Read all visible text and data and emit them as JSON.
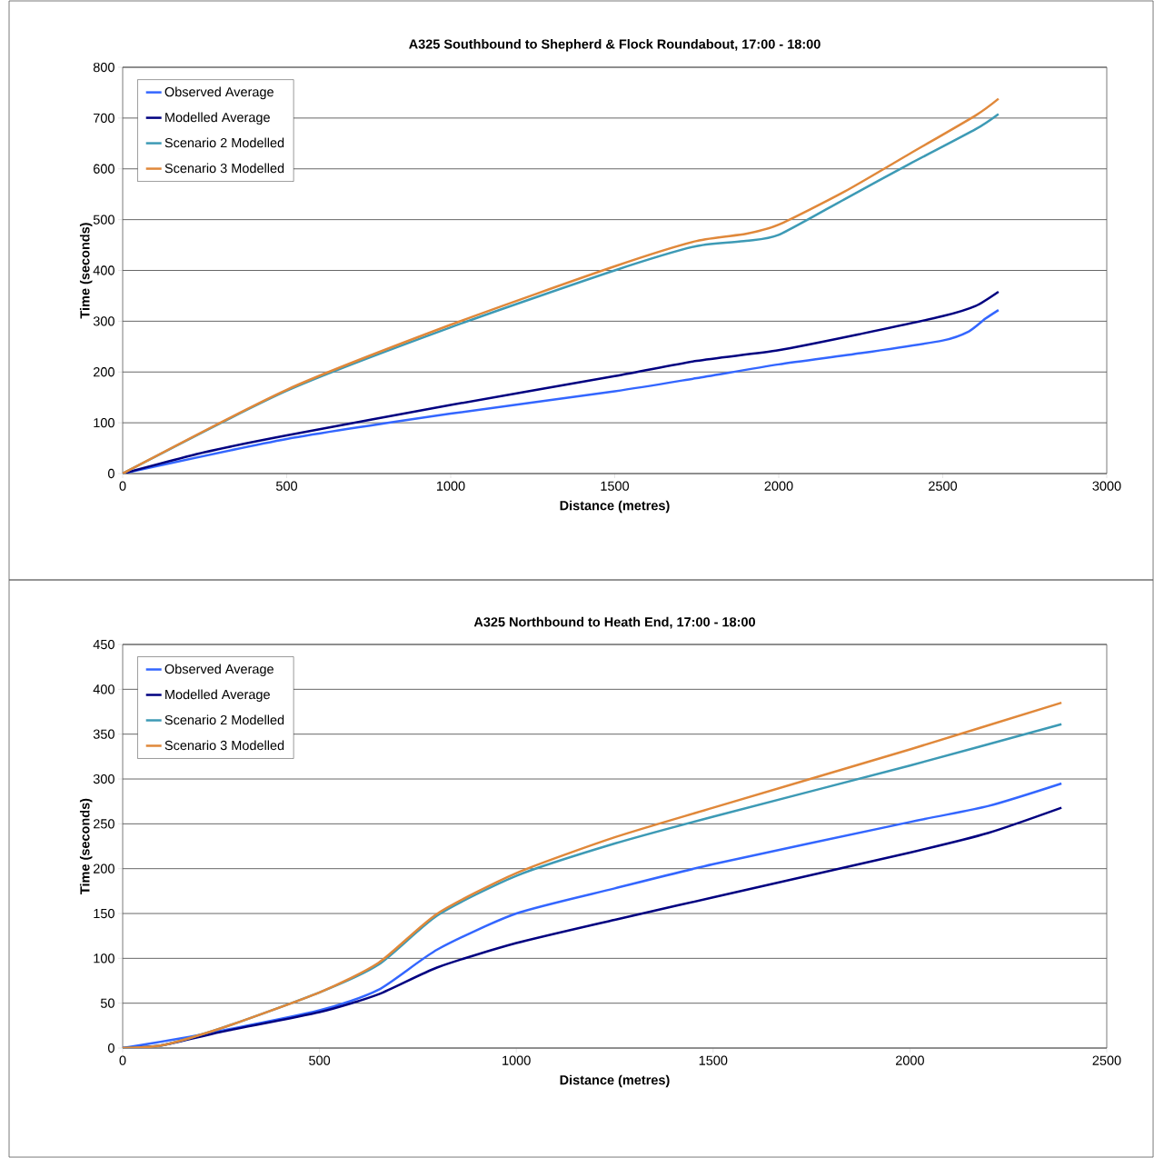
{
  "chart_data": [
    {
      "type": "line",
      "title": "A325 Southbound to Shepherd & Flock Roundabout, 17:00 - 18:00",
      "xlabel": "Distance (metres)",
      "ylabel": "Time (seconds)",
      "xlim": [
        0,
        3000
      ],
      "xticks": [
        0,
        500,
        1000,
        1500,
        2000,
        2500,
        3000
      ],
      "ylim": [
        0,
        800
      ],
      "yticks": [
        0,
        100,
        200,
        300,
        400,
        500,
        600,
        700,
        800
      ],
      "grid": "y",
      "legend": "top left",
      "marker": "none",
      "line_style": "solid",
      "series": [
        {
          "name": "Observed Average",
          "color": "#3366ff",
          "x": [
            0,
            500,
            1000,
            1500,
            1750,
            2000,
            2250,
            2500,
            2580,
            2630,
            2670
          ],
          "values": [
            0,
            68,
            118,
            162,
            188,
            215,
            237,
            262,
            280,
            305,
            322
          ]
        },
        {
          "name": "Modelled Average",
          "color": "#000080",
          "x": [
            0,
            250,
            500,
            1000,
            1500,
            1750,
            2000,
            2250,
            2500,
            2600,
            2670
          ],
          "values": [
            0,
            42,
            75,
            135,
            192,
            222,
            243,
            275,
            310,
            330,
            358
          ]
        },
        {
          "name": "Scenario 2 Modelled",
          "color": "#3d9ab5",
          "x": [
            0,
            500,
            1000,
            1500,
            1750,
            1900,
            2000,
            2200,
            2400,
            2600,
            2670
          ],
          "values": [
            0,
            163,
            288,
            400,
            448,
            458,
            470,
            540,
            610,
            678,
            708
          ]
        },
        {
          "name": "Scenario 3 Modelled",
          "color": "#e0883a",
          "x": [
            0,
            500,
            1000,
            1500,
            1750,
            1900,
            2000,
            2200,
            2400,
            2600,
            2670
          ],
          "values": [
            0,
            165,
            293,
            408,
            458,
            472,
            490,
            555,
            630,
            705,
            738
          ]
        }
      ]
    },
    {
      "type": "line",
      "title": "A325 Northbound to Heath End, 17:00 - 18:00",
      "xlabel": "Distance (metres)",
      "ylabel": "Time (seconds)",
      "xlim": [
        0,
        2500
      ],
      "xticks": [
        0,
        500,
        1000,
        1500,
        2000,
        2500
      ],
      "ylim": [
        0,
        450
      ],
      "yticks": [
        0,
        50,
        100,
        150,
        200,
        250,
        300,
        350,
        400,
        450
      ],
      "grid": "y",
      "legend": "top left",
      "marker": "none",
      "line_style": "solid",
      "series": [
        {
          "name": "Observed Average",
          "color": "#3366ff",
          "x": [
            0,
            200,
            500,
            650,
            800,
            1000,
            1250,
            1500,
            2000,
            2200,
            2385
          ],
          "values": [
            0,
            15,
            42,
            65,
            110,
            150,
            178,
            205,
            252,
            270,
            295
          ]
        },
        {
          "name": "Modelled Average",
          "color": "#000080",
          "x": [
            0,
            100,
            250,
            500,
            650,
            800,
            1000,
            1250,
            1500,
            2000,
            2200,
            2385
          ],
          "values": [
            0,
            3,
            18,
            40,
            60,
            90,
            117,
            143,
            168,
            218,
            240,
            268
          ]
        },
        {
          "name": "Scenario 2 Modelled",
          "color": "#3d9ab5",
          "x": [
            0,
            100,
            250,
            500,
            650,
            800,
            1000,
            1250,
            1500,
            2000,
            2385
          ],
          "values": [
            0,
            3,
            22,
            62,
            93,
            148,
            192,
            228,
            258,
            315,
            361
          ]
        },
        {
          "name": "Scenario 3 Modelled",
          "color": "#e0883a",
          "x": [
            0,
            100,
            250,
            500,
            650,
            800,
            1000,
            1250,
            1500,
            2000,
            2385
          ],
          "values": [
            0,
            3,
            22,
            62,
            95,
            150,
            195,
            235,
            268,
            333,
            385
          ]
        }
      ]
    }
  ]
}
